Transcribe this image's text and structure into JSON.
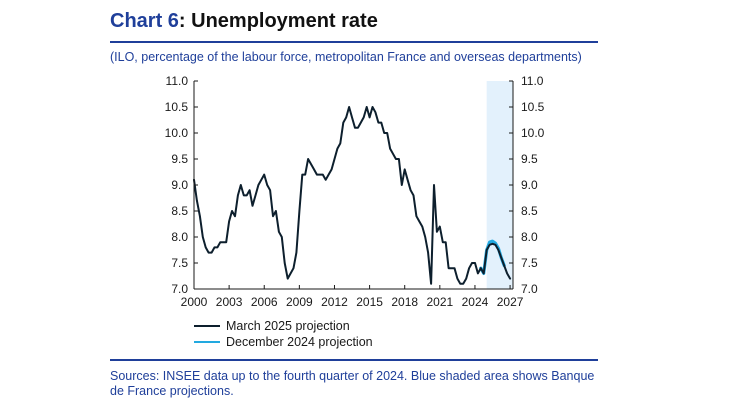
{
  "header": {
    "chart_number": "Chart 6",
    "chart_title": ": Unemployment rate",
    "subtitle": "(ILO, percentage of the labour force, metropolitan France and overseas departments)"
  },
  "footer": {
    "source": "Sources: INSEE data up to the fourth quarter of 2024. Blue shaded area shows Banque de France projections."
  },
  "chart_data": {
    "type": "line",
    "title": "Unemployment rate",
    "xlabel": "",
    "ylabel": "",
    "xlim": [
      2000,
      2027.25
    ],
    "ylim": [
      7.0,
      11.0
    ],
    "x_ticks": [
      2000,
      2003,
      2006,
      2009,
      2012,
      2015,
      2018,
      2021,
      2024,
      2027
    ],
    "y_ticks": [
      7.0,
      7.5,
      8.0,
      8.5,
      9.0,
      9.5,
      10.0,
      10.5,
      11.0
    ],
    "y_tick_labels": [
      "7.0",
      "7.5",
      "8.0",
      "8.5",
      "9.0",
      "9.5",
      "10.0",
      "10.5",
      "11.0"
    ],
    "grid": false,
    "dual_y_axis": true,
    "shaded_region": {
      "x_start": 2025.0,
      "x_end": 2027.25,
      "meaning": "Banque de France projections",
      "color": "#e3f1fc"
    },
    "legend": {
      "placement": "bottom-left"
    },
    "series": [
      {
        "name": "March 2025 projection",
        "color": "#0d1f2d",
        "x": [
          2000.0,
          2000.25,
          2000.5,
          2000.75,
          2001.0,
          2001.25,
          2001.5,
          2001.75,
          2002.0,
          2002.25,
          2002.5,
          2002.75,
          2003.0,
          2003.25,
          2003.5,
          2003.75,
          2004.0,
          2004.25,
          2004.5,
          2004.75,
          2005.0,
          2005.25,
          2005.5,
          2005.75,
          2006.0,
          2006.25,
          2006.5,
          2006.75,
          2007.0,
          2007.25,
          2007.5,
          2007.75,
          2008.0,
          2008.25,
          2008.5,
          2008.75,
          2009.0,
          2009.25,
          2009.5,
          2009.75,
          2010.0,
          2010.25,
          2010.5,
          2010.75,
          2011.0,
          2011.25,
          2011.5,
          2011.75,
          2012.0,
          2012.25,
          2012.5,
          2012.75,
          2013.0,
          2013.25,
          2013.5,
          2013.75,
          2014.0,
          2014.25,
          2014.5,
          2014.75,
          2015.0,
          2015.25,
          2015.5,
          2015.75,
          2016.0,
          2016.25,
          2016.5,
          2016.75,
          2017.0,
          2017.25,
          2017.5,
          2017.75,
          2018.0,
          2018.25,
          2018.5,
          2018.75,
          2019.0,
          2019.25,
          2019.5,
          2019.75,
          2020.0,
          2020.25,
          2020.5,
          2020.75,
          2021.0,
          2021.25,
          2021.5,
          2021.75,
          2022.0,
          2022.25,
          2022.5,
          2022.75,
          2023.0,
          2023.25,
          2023.5,
          2023.75,
          2024.0,
          2024.25,
          2024.5,
          2024.75,
          2025.0,
          2025.25,
          2025.5,
          2025.75,
          2026.0,
          2026.25,
          2026.5,
          2026.75,
          2027.0
        ],
        "values": [
          9.1,
          8.7,
          8.4,
          8.0,
          7.8,
          7.7,
          7.7,
          7.8,
          7.8,
          7.9,
          7.9,
          7.9,
          8.3,
          8.5,
          8.4,
          8.8,
          9.0,
          8.8,
          8.8,
          8.9,
          8.6,
          8.8,
          9.0,
          9.1,
          9.2,
          9.0,
          8.9,
          8.4,
          8.5,
          8.1,
          8.0,
          7.5,
          7.2,
          7.3,
          7.4,
          7.7,
          8.5,
          9.2,
          9.2,
          9.5,
          9.4,
          9.3,
          9.2,
          9.2,
          9.2,
          9.1,
          9.2,
          9.3,
          9.5,
          9.7,
          9.8,
          10.2,
          10.3,
          10.5,
          10.3,
          10.1,
          10.1,
          10.2,
          10.3,
          10.5,
          10.3,
          10.5,
          10.4,
          10.2,
          10.2,
          10.0,
          10.0,
          9.7,
          9.6,
          9.5,
          9.5,
          9.0,
          9.3,
          9.1,
          8.9,
          8.8,
          8.4,
          8.3,
          8.2,
          8.0,
          7.7,
          7.1,
          9.0,
          8.1,
          8.2,
          7.9,
          7.9,
          7.4,
          7.4,
          7.4,
          7.2,
          7.1,
          7.1,
          7.2,
          7.4,
          7.5,
          7.5,
          7.3,
          7.4,
          7.3,
          7.75,
          7.85,
          7.87,
          7.85,
          7.75,
          7.6,
          7.45,
          7.3,
          7.2
        ]
      },
      {
        "name": "December 2024 projection",
        "color": "#22a9e0",
        "x": [
          2024.5,
          2024.75,
          2025.0,
          2025.25,
          2025.5,
          2025.75,
          2026.0,
          2026.25,
          2026.5
        ],
        "values": [
          7.4,
          7.3,
          7.75,
          7.9,
          7.92,
          7.88,
          7.78,
          7.6,
          7.45
        ]
      }
    ]
  }
}
